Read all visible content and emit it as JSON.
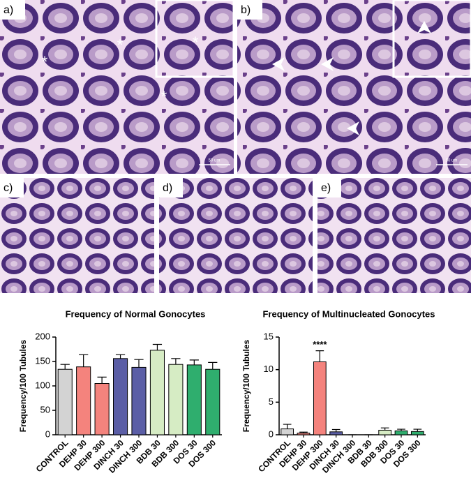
{
  "panels": {
    "labels": [
      "a)",
      "b)",
      "c)",
      "d)",
      "e)"
    ],
    "scale_bar": "50 um"
  },
  "chart_data": [
    {
      "type": "bar",
      "title": "Frequency of Normal Gonocytes",
      "ylabel": "Frequency/100 Tubules",
      "categories": [
        "CONTROL",
        "DEHP 30",
        "DEHP 300",
        "DINCH 30",
        "DINCH 300",
        "BDB 30",
        "BDB 300",
        "DOS 30",
        "DOS 300"
      ],
      "values": [
        134,
        139,
        105,
        156,
        138,
        173,
        144,
        143,
        134
      ],
      "errors": [
        10,
        25,
        13,
        8,
        16,
        12,
        12,
        10,
        14
      ],
      "colors": [
        "#d3d3d3",
        "#f4837d",
        "#f4837d",
        "#5b5ea6",
        "#5b5ea6",
        "#d6ecc4",
        "#d6ecc4",
        "#2fae6e",
        "#2fae6e"
      ],
      "ylim": [
        0,
        200
      ],
      "yticks": [
        0,
        50,
        100,
        150,
        200
      ]
    },
    {
      "type": "bar",
      "title": "Frequency of Multinucleated Gonocytes",
      "ylabel": "Frequency/100 Tubules",
      "categories": [
        "CONTROL",
        "DEHP 30",
        "DEHP 300",
        "DINCH 30",
        "DINCH 300",
        "BDB 30",
        "BDB 300",
        "DOS 30",
        "DOS 300"
      ],
      "values": [
        0.9,
        0.25,
        11.2,
        0.45,
        0,
        0,
        0.7,
        0.6,
        0.5
      ],
      "errors": [
        0.7,
        0.15,
        1.7,
        0.35,
        0,
        0,
        0.35,
        0.25,
        0.35
      ],
      "colors": [
        "#d3d3d3",
        "#f4837d",
        "#f4837d",
        "#5b5ea6",
        "#5b5ea6",
        "#d6ecc4",
        "#d6ecc4",
        "#2fae6e",
        "#2fae6e"
      ],
      "ylim": [
        0,
        15
      ],
      "yticks": [
        0,
        5,
        10,
        15
      ],
      "annotations": [
        {
          "category": 2,
          "text": "****"
        }
      ]
    }
  ]
}
